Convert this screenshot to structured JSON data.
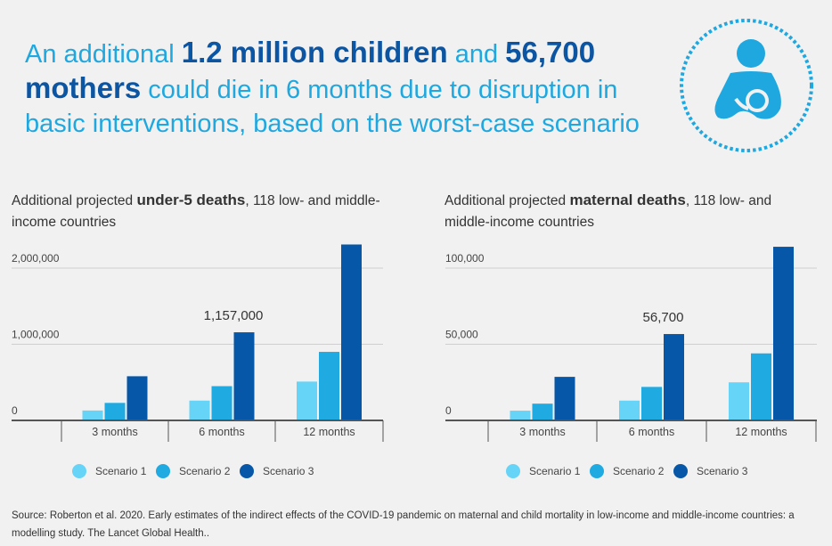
{
  "headline": {
    "p1": "An additional ",
    "b1": "1.2 million children",
    "p2": " and ",
    "b2": "56,700 mothers",
    "p3": " could die in 6 months due to disruption in basic interventions, based on the worst-case scenario"
  },
  "icon": "breastfeeding-mother-icon",
  "colors": {
    "s1": "#66d4f7",
    "s2": "#1faae2",
    "s3": "#0757a8",
    "headline_light": "#1fa8e0",
    "headline_dark": "#0b55a3"
  },
  "chart_data": [
    {
      "type": "bar",
      "title_pre": "Additional projected ",
      "title_bold": "under-5 deaths",
      "title_post": ", 118 low- and middle-income countries",
      "categories": [
        "3 months",
        "6 months",
        "12 months"
      ],
      "yticks": [
        {
          "v": 0,
          "label": "0"
        },
        {
          "v": 1000000,
          "label": "1,000,000"
        },
        {
          "v": 2000000,
          "label": "2,000,000"
        }
      ],
      "ylim": [
        0,
        2000000
      ],
      "series": [
        {
          "name": "Scenario 1",
          "values": [
            130000,
            260000,
            510000
          ]
        },
        {
          "name": "Scenario 2",
          "values": [
            230000,
            450000,
            900000
          ]
        },
        {
          "name": "Scenario 3",
          "values": [
            580000,
            1157000,
            2310000
          ]
        }
      ],
      "annotation": {
        "category": 1,
        "series": 2,
        "label": "1,157,000"
      },
      "legend": "bottom-center"
    },
    {
      "type": "bar",
      "title_pre": "Additional projected ",
      "title_bold": "maternal deaths",
      "title_post": ", 118 low- and middle-income countries",
      "categories": [
        "3 months",
        "6 months",
        "12 months"
      ],
      "yticks": [
        {
          "v": 0,
          "label": "0"
        },
        {
          "v": 50000,
          "label": "50,000"
        },
        {
          "v": 100000,
          "label": "100,000"
        }
      ],
      "ylim": [
        0,
        100000
      ],
      "series": [
        {
          "name": "Scenario 1",
          "values": [
            6400,
            13000,
            25000
          ]
        },
        {
          "name": "Scenario 2",
          "values": [
            11000,
            22000,
            44000
          ]
        },
        {
          "name": "Scenario 3",
          "values": [
            28600,
            56700,
            114000
          ]
        }
      ],
      "annotation": {
        "category": 1,
        "series": 2,
        "label": "56,700"
      },
      "legend": "bottom-center"
    }
  ],
  "source": "Source: Roberton et al.  2020. Early estimates of the indirect effects of the COVID-19 pandemic on maternal and child mortality in low-income and middle-income countries: a modelling study. The Lancet Global Health.."
}
